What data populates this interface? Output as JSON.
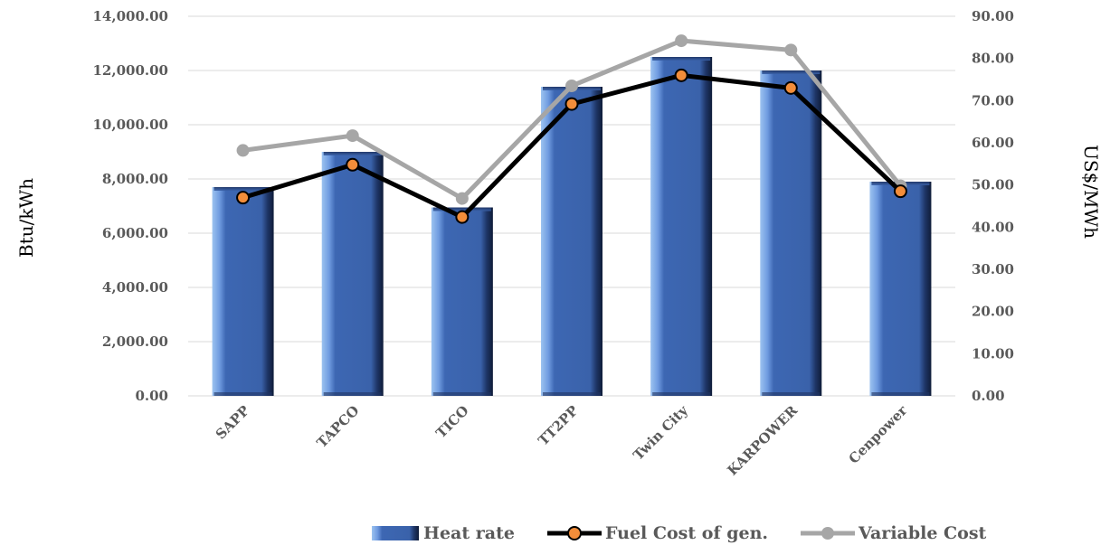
{
  "chart_data": {
    "type": "bar",
    "title": "",
    "categories": [
      "SAPP",
      "TAPCO",
      "TICO",
      "TT2PP",
      "Twin City",
      "KARPOWER",
      "Cenpower"
    ],
    "y_left": {
      "label": "Btu/kWh",
      "range": [
        0,
        14000
      ],
      "ticks": [
        "0.00",
        "2,000.00",
        "4,000.00",
        "6,000.00",
        "8,000.00",
        "10,000.00",
        "12,000.00",
        "14,000.00"
      ]
    },
    "y_right": {
      "label": "US$/MWh",
      "range": [
        0,
        90
      ],
      "ticks": [
        "0.00",
        "10.00",
        "20.00",
        "30.00",
        "40.00",
        "50.00",
        "60.00",
        "70.00",
        "80.00",
        "90.00"
      ]
    },
    "series": [
      {
        "name": "Heat rate",
        "type": "bar",
        "axis": "left",
        "color": "#3a66b0",
        "values": [
          7700,
          9000,
          6950,
          11400,
          12500,
          12000,
          7900
        ]
      },
      {
        "name": "Fuel Cost of gen.",
        "type": "line",
        "axis": "right",
        "color": "#000000",
        "marker_color": "#f28d3a",
        "values": [
          47.0,
          54.8,
          42.4,
          69.2,
          76.0,
          73.0,
          48.5
        ]
      },
      {
        "name": "Variable Cost",
        "type": "line",
        "axis": "right",
        "color": "#a6a6a6",
        "values": [
          58.2,
          61.7,
          46.8,
          73.5,
          84.2,
          82.0,
          49.8
        ]
      }
    ],
    "grid": true,
    "legend_position": "bottom"
  }
}
